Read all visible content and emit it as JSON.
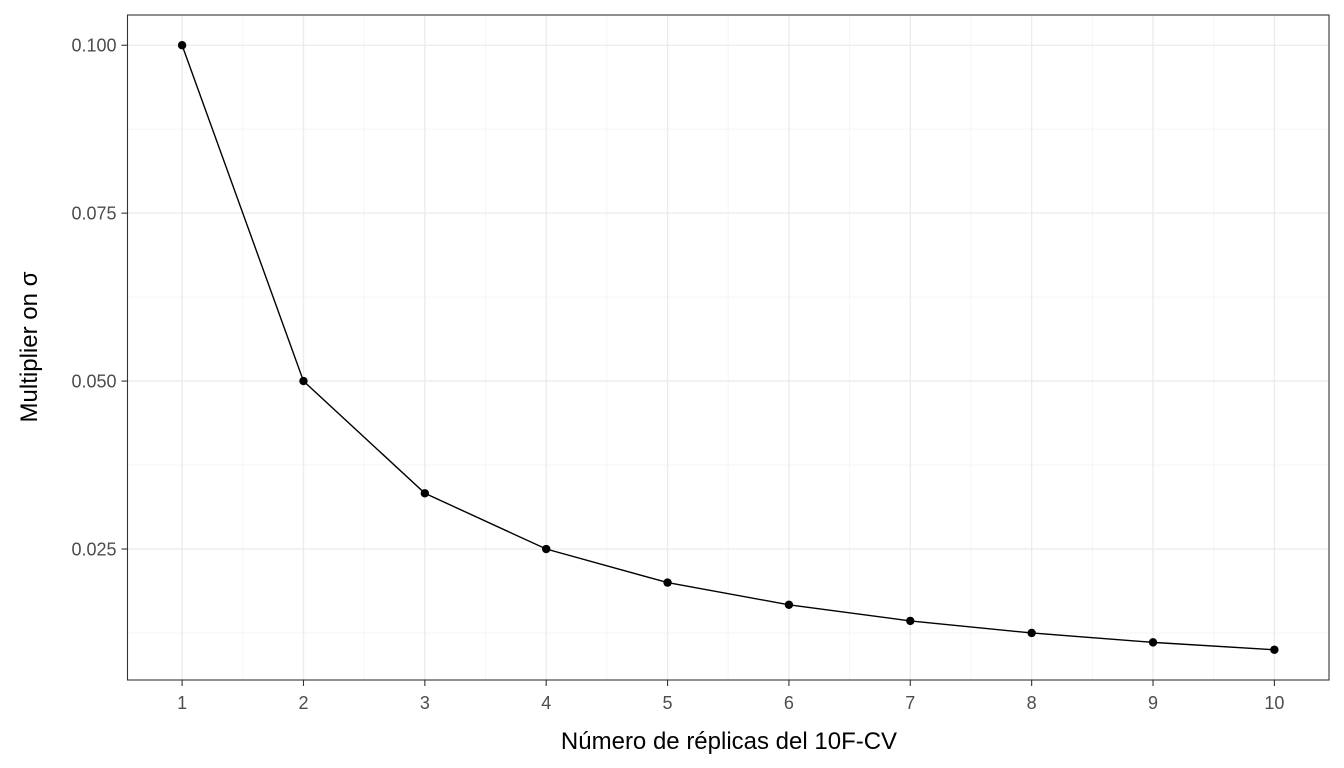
{
  "chart_data": {
    "type": "line",
    "title": "",
    "xlabel": "Número de réplicas del 10F-CV",
    "ylabel": "Multiplier on σ",
    "x": [
      1,
      2,
      3,
      4,
      5,
      6,
      7,
      8,
      9,
      10
    ],
    "series": [
      {
        "values": [
          0.1,
          0.05,
          0.0333,
          0.025,
          0.02,
          0.0167,
          0.0143,
          0.0125,
          0.0111,
          0.01
        ]
      }
    ],
    "xlim": [
      0.55,
      10.45
    ],
    "ylim": [
      0.0055,
      0.1045
    ],
    "xticks": [
      1,
      2,
      3,
      4,
      5,
      6,
      7,
      8,
      9,
      10
    ],
    "xtick_labels": [
      "1",
      "2",
      "3",
      "4",
      "5",
      "6",
      "7",
      "8",
      "9",
      "10"
    ],
    "yticks": [
      0.025,
      0.05,
      0.075,
      0.1
    ],
    "ytick_labels": [
      "0.025",
      "0.050",
      "0.075",
      "0.100"
    ],
    "grid": true,
    "legend": "none",
    "colors": {
      "line": "#000000",
      "points": "#000000",
      "grid_major": "#ebebeb",
      "grid_minor": "#f5f5f5",
      "panel_border": "#333333",
      "tick_text": "#4d4d4d"
    }
  }
}
